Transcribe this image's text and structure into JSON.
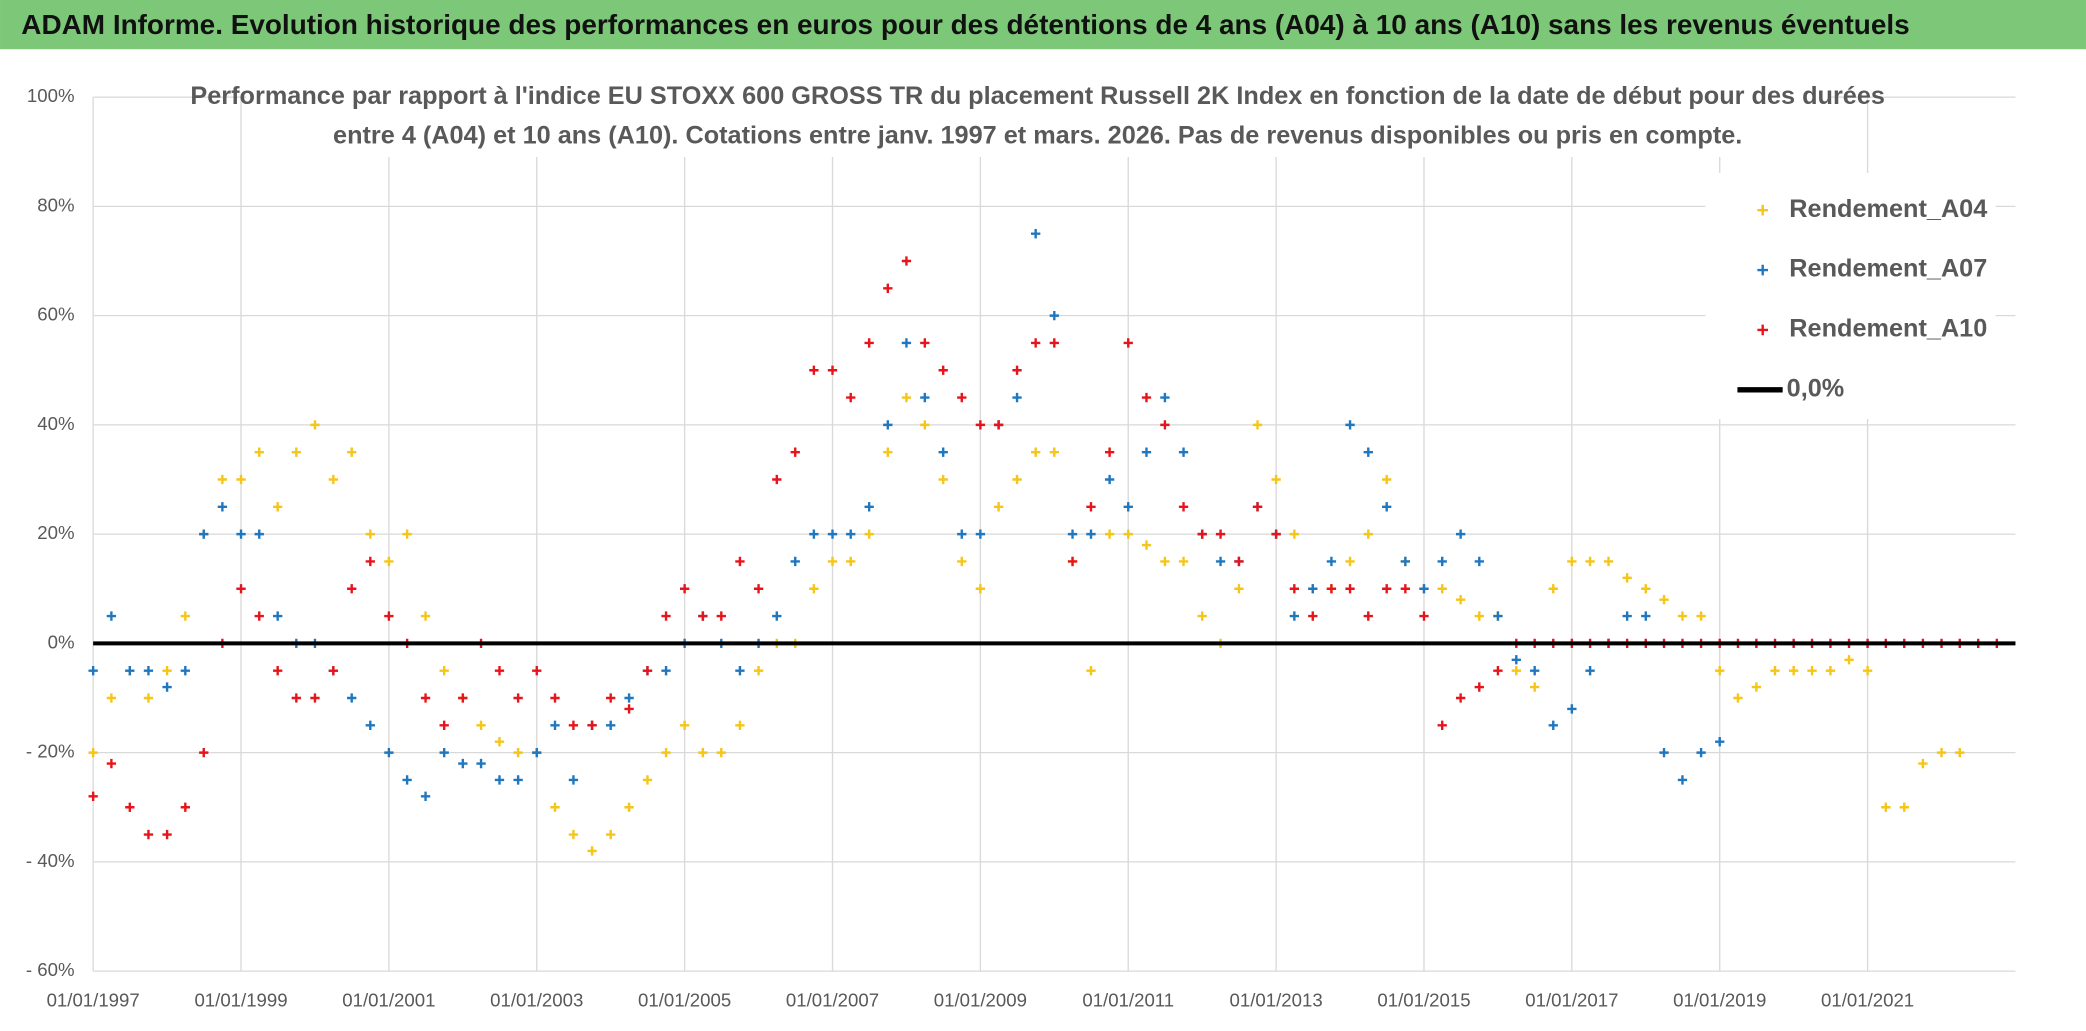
{
  "chart_data": {
    "type": "scatter",
    "title": "ADAM Informe. Evolution historique des performances en euros pour des détentions de 4 ans (A04) à 10 ans (A10) sans les revenus éventuels",
    "subtitle": [
      "Performance par rapport à l'indice EU STOXX 600 GROSS TR  du placement Russell 2K Index en fonction de la date de début pour des durées",
      "entre 4 (A04) et 10 ans (A10). Cotations entre janv. 1997 et mars. 2026. Pas de revenus disponibles ou pris en compte."
    ],
    "x": [
      "01/01/1997",
      "01/04/1997",
      "01/07/1997",
      "01/10/1997",
      "01/01/1998",
      "01/04/1998",
      "01/07/1998",
      "01/10/1998",
      "01/01/1999",
      "01/04/1999",
      "01/07/1999",
      "01/10/1999",
      "01/01/2000",
      "01/04/2000",
      "01/07/2000",
      "01/10/2000",
      "01/01/2001",
      "01/04/2001",
      "01/07/2001",
      "01/10/2001",
      "01/01/2002",
      "01/04/2002",
      "01/07/2002",
      "01/10/2002",
      "01/01/2003",
      "01/04/2003",
      "01/07/2003",
      "01/10/2003",
      "01/01/2004",
      "01/04/2004",
      "01/07/2004",
      "01/10/2004",
      "01/01/2005",
      "01/04/2005",
      "01/07/2005",
      "01/10/2005",
      "01/01/2006",
      "01/04/2006",
      "01/07/2006",
      "01/10/2006",
      "01/01/2007",
      "01/04/2007",
      "01/07/2007",
      "01/10/2007",
      "01/01/2008",
      "01/04/2008",
      "01/07/2008",
      "01/10/2008",
      "01/01/2009",
      "01/04/2009",
      "01/07/2009",
      "01/10/2009",
      "01/01/2010",
      "01/04/2010",
      "01/07/2010",
      "01/10/2010",
      "01/01/2011",
      "01/04/2011",
      "01/07/2011",
      "01/10/2011",
      "01/01/2012",
      "01/04/2012",
      "01/07/2012",
      "01/10/2012",
      "01/01/2013",
      "01/04/2013",
      "01/07/2013",
      "01/10/2013",
      "01/01/2014",
      "01/04/2014",
      "01/07/2014",
      "01/10/2014",
      "01/01/2015",
      "01/04/2015",
      "01/07/2015",
      "01/10/2015",
      "01/01/2016",
      "01/04/2016",
      "01/07/2016",
      "01/10/2016",
      "01/01/2017",
      "01/04/2017",
      "01/07/2017",
      "01/10/2017",
      "01/01/2018",
      "01/04/2018",
      "01/07/2018",
      "01/10/2018",
      "01/01/2019",
      "01/04/2019",
      "01/07/2019",
      "01/10/2019",
      "01/01/2020",
      "01/04/2020",
      "01/07/2020",
      "01/10/2020",
      "01/01/2021",
      "01/04/2021",
      "01/07/2021",
      "01/10/2021",
      "01/01/2022",
      "01/04/2022",
      "01/07/2022",
      "01/10/2022"
    ],
    "series": [
      {
        "name": "Rendement_A04",
        "color": "#f5c518",
        "values": [
          -20,
          -10,
          -5,
          -10,
          -5,
          5,
          20,
          30,
          30,
          35,
          25,
          35,
          40,
          30,
          35,
          20,
          15,
          20,
          5,
          -5,
          -10,
          -15,
          -18,
          -20,
          -20,
          -30,
          -35,
          -38,
          -35,
          -30,
          -25,
          -20,
          -15,
          -20,
          -20,
          -15,
          -5,
          0,
          0,
          10,
          15,
          15,
          20,
          35,
          45,
          40,
          30,
          15,
          10,
          25,
          30,
          35,
          35,
          15,
          -5,
          20,
          20,
          18,
          15,
          15,
          5,
          0,
          10,
          40,
          30,
          20,
          10,
          10,
          15,
          20,
          30,
          15,
          10,
          10,
          8,
          5,
          5,
          -5,
          -8,
          10,
          15,
          15,
          15,
          12,
          10,
          8,
          5,
          5,
          -5,
          -10,
          -8,
          -5,
          -5,
          -5,
          -5,
          -3,
          -5,
          -30,
          -30,
          -22,
          -20,
          -20,
          null,
          null
        ]
      },
      {
        "name": "Rendement_A07",
        "color": "#1f77c0",
        "values": [
          -5,
          5,
          -5,
          -5,
          -8,
          -5,
          20,
          25,
          20,
          20,
          5,
          0,
          0,
          -5,
          -10,
          -15,
          -20,
          -25,
          -28,
          -20,
          -22,
          -22,
          -25,
          -25,
          -20,
          -15,
          -25,
          -15,
          -15,
          -10,
          -5,
          -5,
          0,
          5,
          0,
          -5,
          0,
          5,
          15,
          20,
          20,
          20,
          25,
          40,
          55,
          45,
          35,
          20,
          20,
          40,
          45,
          75,
          60,
          20,
          20,
          30,
          25,
          35,
          45,
          35,
          20,
          15,
          15,
          25,
          20,
          5,
          10,
          15,
          40,
          35,
          25,
          15,
          10,
          15,
          20,
          15,
          5,
          -3,
          -5,
          -15,
          -12,
          -5,
          0,
          5,
          5,
          -20,
          -25,
          -20,
          -18,
          null,
          null,
          null,
          null,
          null,
          null,
          null,
          null,
          null,
          null,
          null,
          null,
          null,
          null,
          null
        ]
      },
      {
        "name": "Rendement_A10",
        "color": "#e8141c",
        "values": [
          -28,
          -22,
          -30,
          -35,
          -35,
          -30,
          -20,
          0,
          10,
          5,
          -5,
          -10,
          -10,
          -5,
          10,
          15,
          5,
          0,
          -10,
          -15,
          -10,
          0,
          -5,
          -10,
          -5,
          -10,
          -15,
          -15,
          -10,
          -12,
          -5,
          5,
          10,
          5,
          5,
          15,
          10,
          30,
          35,
          50,
          50,
          45,
          55,
          65,
          70,
          55,
          50,
          45,
          40,
          40,
          50,
          55,
          55,
          15,
          25,
          35,
          55,
          45,
          40,
          25,
          20,
          20,
          15,
          25,
          20,
          10,
          5,
          10,
          10,
          5,
          10,
          10,
          5,
          -15,
          -10,
          -8,
          -5,
          0,
          0,
          0,
          0,
          0,
          0,
          0,
          0,
          0,
          0,
          0,
          0,
          0,
          0,
          0,
          0,
          0,
          0,
          0,
          0,
          0,
          0,
          0,
          0,
          0,
          0,
          0
        ]
      }
    ],
    "lines": [
      {
        "name": "0,0%",
        "value": 0,
        "color": "#000000"
      }
    ],
    "xlim": [
      "01/01/1997",
      "01/01/2023"
    ],
    "xticks": [
      "01/01/1997",
      "01/01/1999",
      "01/01/2001",
      "01/01/2003",
      "01/01/2005",
      "01/01/2007",
      "01/01/2009",
      "01/01/2011",
      "01/01/2013",
      "01/01/2015",
      "01/01/2017",
      "01/01/2019",
      "01/01/2021"
    ],
    "ylim": [
      -60,
      100
    ],
    "yticks": [
      {
        "value": -60,
        "label": "- 60%"
      },
      {
        "value": -40,
        "label": "- 40%"
      },
      {
        "value": -20,
        "label": "- 20%"
      },
      {
        "value": 0,
        "label": "0%"
      },
      {
        "value": 20,
        "label": "20%"
      },
      {
        "value": 40,
        "label": "40%"
      },
      {
        "value": 60,
        "label": "60%"
      },
      {
        "value": 80,
        "label": "80%"
      },
      {
        "value": 100,
        "label": "100%"
      }
    ],
    "grid": true
  }
}
